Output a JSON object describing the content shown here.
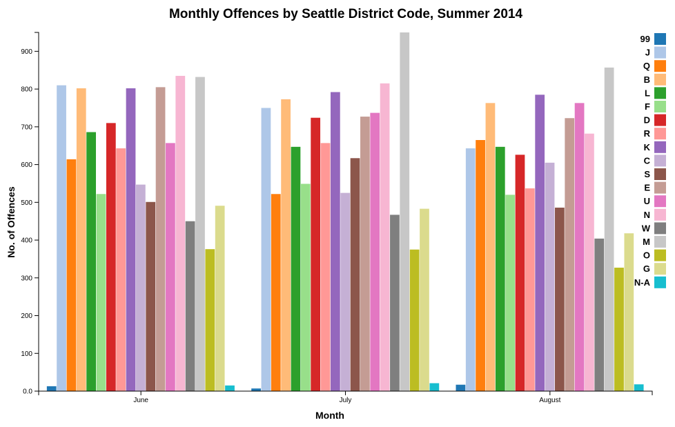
{
  "chart_data": {
    "type": "bar",
    "title": "Monthly Offences by Seattle District Code, Summer 2014",
    "xlabel": "Month",
    "ylabel": "No. of Offences",
    "ylim": [
      0,
      950
    ],
    "yticks": [
      "0.0",
      "100",
      "200",
      "300",
      "400",
      "500",
      "600",
      "700",
      "800",
      "900"
    ],
    "categories": [
      "June",
      "July",
      "August"
    ],
    "legend_position": "right",
    "grid": false,
    "series": [
      {
        "name": "99",
        "color": "#1f77b4",
        "values": [
          13,
          7,
          17
        ]
      },
      {
        "name": "J",
        "color": "#aec7e8",
        "values": [
          810,
          750,
          643
        ]
      },
      {
        "name": "Q",
        "color": "#ff7f0e",
        "values": [
          614,
          522,
          665
        ]
      },
      {
        "name": "B",
        "color": "#ffbb78",
        "values": [
          802,
          773,
          763
        ]
      },
      {
        "name": "L",
        "color": "#2ca02c",
        "values": [
          686,
          647,
          647
        ]
      },
      {
        "name": "F",
        "color": "#98df8a",
        "values": [
          522,
          549,
          520
        ]
      },
      {
        "name": "D",
        "color": "#d62728",
        "values": [
          710,
          724,
          626
        ]
      },
      {
        "name": "R",
        "color": "#ff9896",
        "values": [
          643,
          657,
          537
        ]
      },
      {
        "name": "K",
        "color": "#9467bd",
        "values": [
          802,
          792,
          785
        ]
      },
      {
        "name": "C",
        "color": "#c5b0d5",
        "values": [
          547,
          525,
          605
        ]
      },
      {
        "name": "S",
        "color": "#8c564b",
        "values": [
          501,
          617,
          486
        ]
      },
      {
        "name": "E",
        "color": "#c49c94",
        "values": [
          805,
          727,
          723
        ]
      },
      {
        "name": "U",
        "color": "#e377c2",
        "values": [
          657,
          737,
          763
        ]
      },
      {
        "name": "N",
        "color": "#f7b6d2",
        "values": [
          835,
          815,
          682
        ]
      },
      {
        "name": "W",
        "color": "#7f7f7f",
        "values": [
          450,
          467,
          404
        ]
      },
      {
        "name": "M",
        "color": "#c7c7c7",
        "values": [
          832,
          952,
          857
        ]
      },
      {
        "name": "O",
        "color": "#bcbd22",
        "values": [
          376,
          375,
          327
        ]
      },
      {
        "name": "G",
        "color": "#dbdb8d",
        "values": [
          491,
          483,
          418
        ]
      },
      {
        "name": "N-A",
        "color": "#17becf",
        "values": [
          15,
          21,
          18
        ]
      }
    ]
  }
}
